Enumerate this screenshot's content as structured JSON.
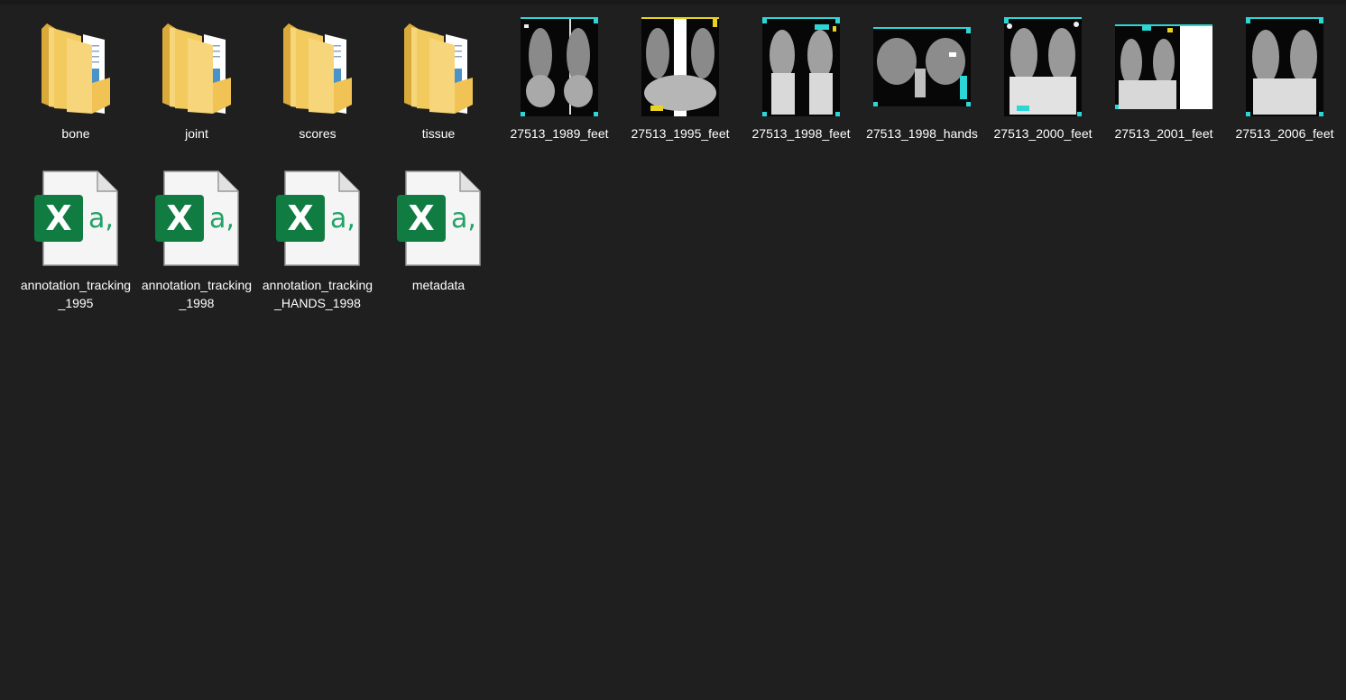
{
  "explorer": {
    "items": [
      {
        "name": "bone",
        "kind": "folder"
      },
      {
        "name": "joint",
        "kind": "folder"
      },
      {
        "name": "scores",
        "kind": "folder"
      },
      {
        "name": "tissue",
        "kind": "folder"
      },
      {
        "name": "27513_1989_feet",
        "kind": "image"
      },
      {
        "name": "27513_1995_feet",
        "kind": "image"
      },
      {
        "name": "27513_1998_feet",
        "kind": "image"
      },
      {
        "name": "27513_1998_hands",
        "kind": "image"
      },
      {
        "name": "27513_2000_feet",
        "kind": "image"
      },
      {
        "name": "27513_2001_feet",
        "kind": "image"
      },
      {
        "name": "27513_2006_feet",
        "kind": "image"
      },
      {
        "name": "annotation_tracking_1995",
        "kind": "spreadsheet"
      },
      {
        "name": "annotation_tracking_1998",
        "kind": "spreadsheet"
      },
      {
        "name": "annotation_tracking_HANDS_1998",
        "kind": "spreadsheet"
      },
      {
        "name": "metadata",
        "kind": "spreadsheet"
      }
    ]
  },
  "icons": {
    "folder": "folder-icon",
    "image": "xray-image-thumbnail",
    "spreadsheet": "csv-file-icon"
  },
  "colors": {
    "background": "#1f1f1f",
    "folder": "#f5cd5b",
    "excel_green": "#107c41",
    "xray_border": "#2cd6d6"
  }
}
